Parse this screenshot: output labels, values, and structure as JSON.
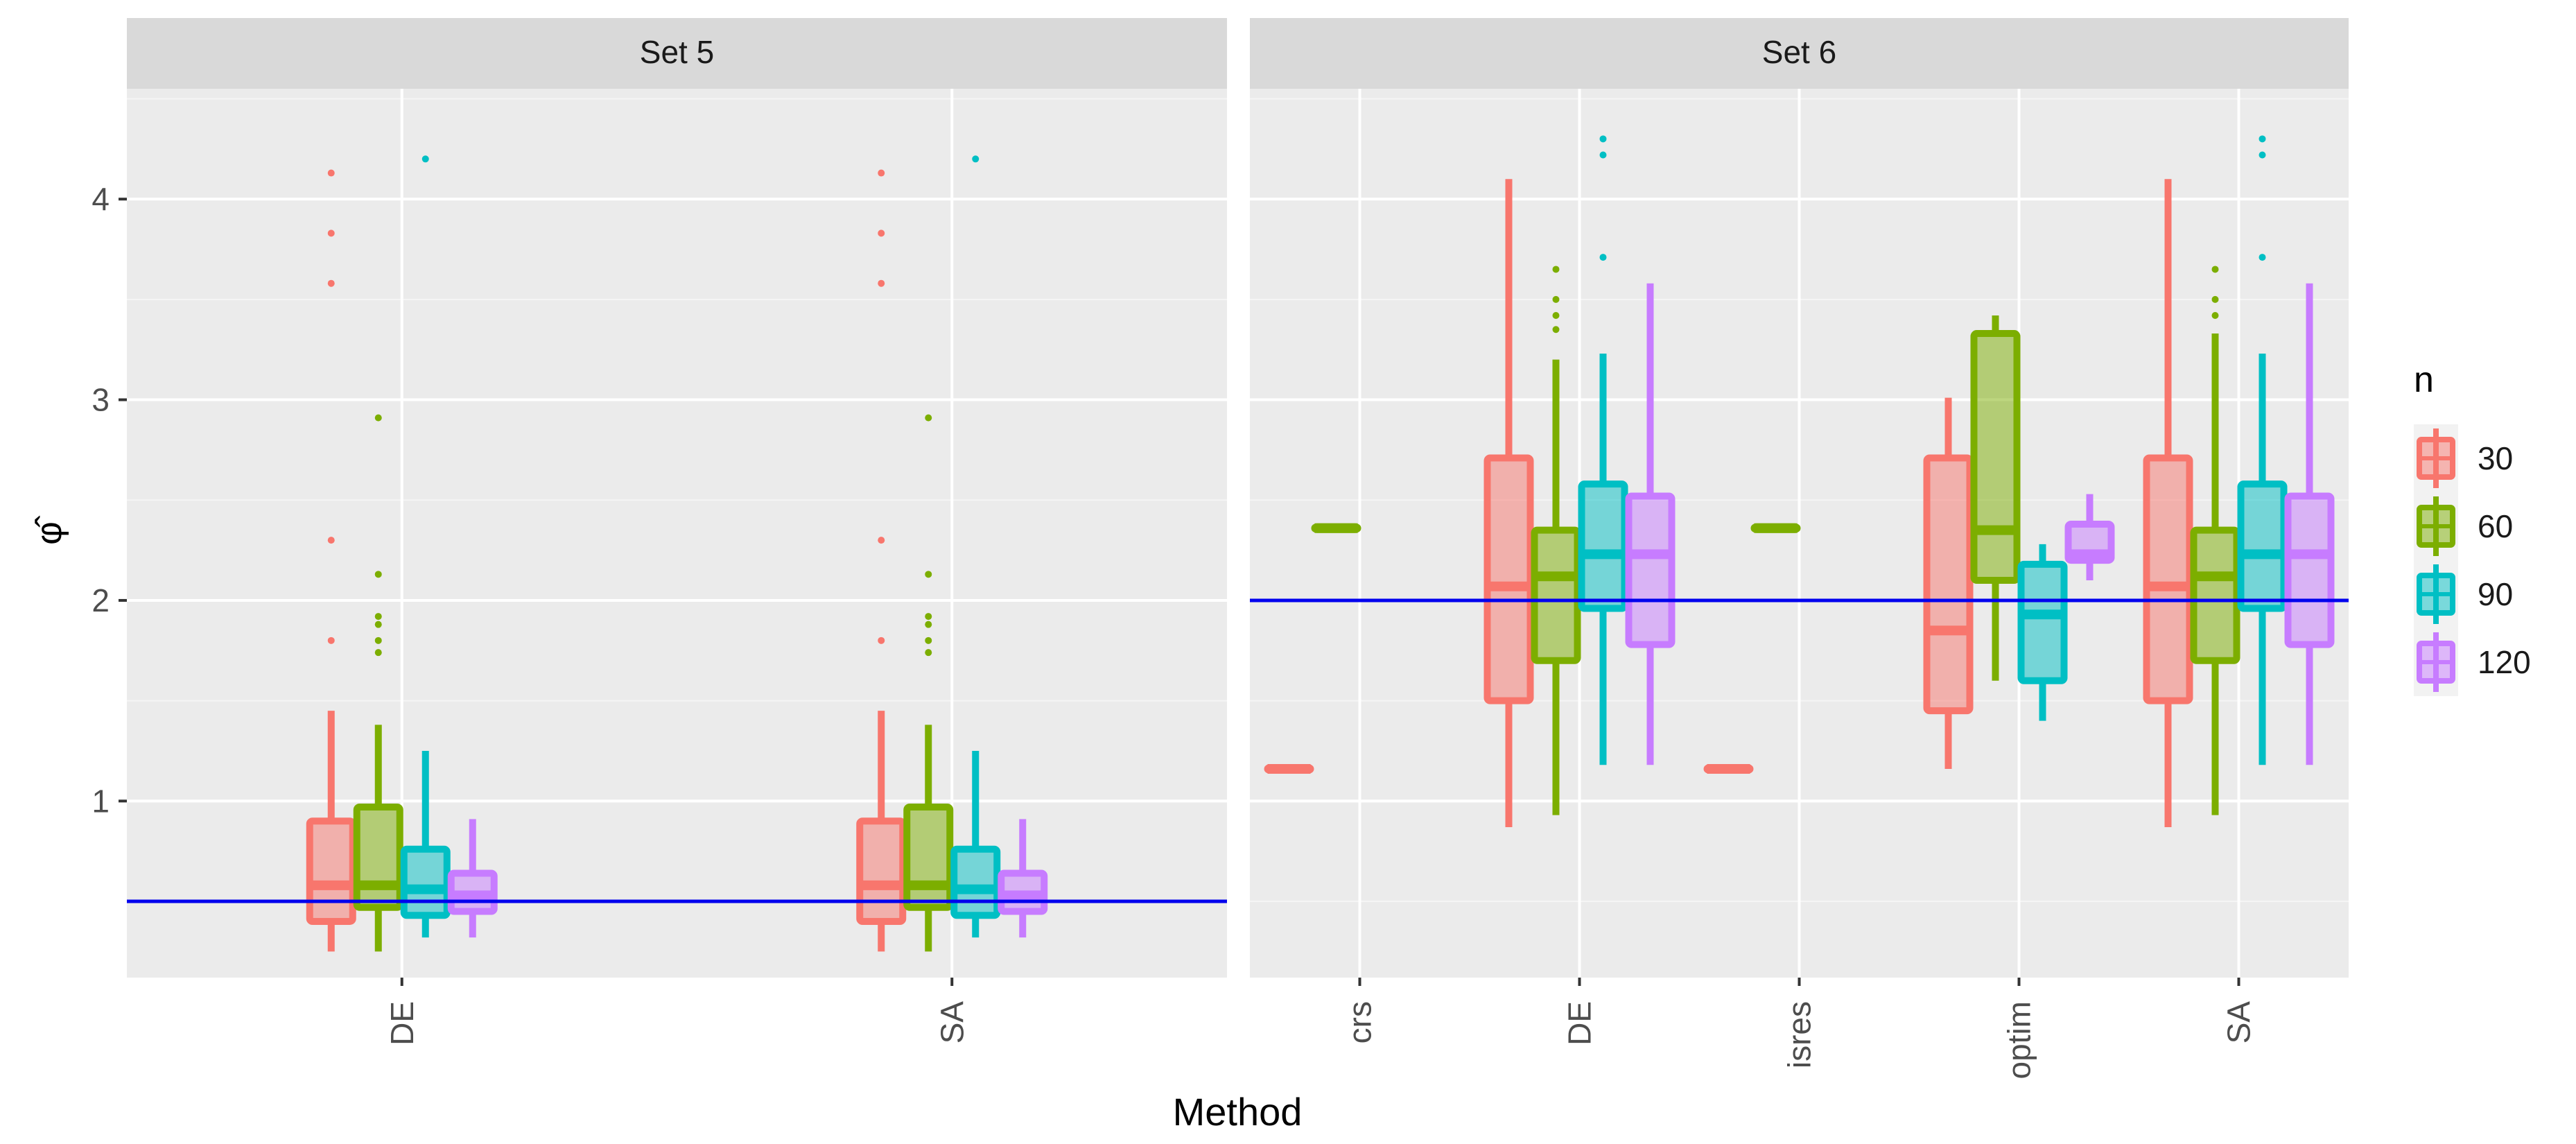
{
  "chart_data": {
    "type": "boxplot",
    "xlabel": "Method",
    "ylabel": "φ̂",
    "yticks": [
      1,
      2,
      3,
      4
    ],
    "ylim": [
      0.12,
      4.55
    ],
    "legend": {
      "title": "n",
      "position": "right",
      "entries": [
        {
          "label": "30",
          "color": "#F8766D"
        },
        {
          "label": "60",
          "color": "#7CAE00"
        },
        {
          "label": "90",
          "color": "#00BFC4"
        },
        {
          "label": "120",
          "color": "#C77CFF"
        }
      ]
    },
    "series_colors": [
      "#F8766D",
      "#7CAE00",
      "#00BFC4",
      "#C77CFF"
    ],
    "reference_line_color": "#0000EE",
    "panels": [
      {
        "strip": "Set 5",
        "reference_line": 0.5,
        "categories": [
          "DE",
          "SA"
        ],
        "groups": [
          {
            "category": "DE",
            "boxes": [
              {
                "n": "30",
                "whisker_low": 0.25,
                "q1": 0.4,
                "median": 0.58,
                "q3": 0.9,
                "whisker_high": 1.45,
                "outliers": [
                  1.8,
                  2.3,
                  3.58,
                  3.83,
                  4.13
                ]
              },
              {
                "n": "60",
                "whisker_low": 0.25,
                "q1": 0.47,
                "median": 0.58,
                "q3": 0.97,
                "whisker_high": 1.38,
                "outliers": [
                  1.74,
                  1.8,
                  1.88,
                  1.92,
                  2.13,
                  2.91
                ]
              },
              {
                "n": "90",
                "whisker_low": 0.32,
                "q1": 0.43,
                "median": 0.56,
                "q3": 0.76,
                "whisker_high": 1.25,
                "outliers": [
                  4.2
                ]
              },
              {
                "n": "120",
                "whisker_low": 0.32,
                "q1": 0.45,
                "median": 0.53,
                "q3": 0.64,
                "whisker_high": 0.91,
                "outliers": []
              }
            ]
          },
          {
            "category": "SA",
            "boxes": [
              {
                "n": "30",
                "whisker_low": 0.25,
                "q1": 0.4,
                "median": 0.58,
                "q3": 0.9,
                "whisker_high": 1.45,
                "outliers": [
                  1.8,
                  2.3,
                  3.58,
                  3.83,
                  4.13
                ]
              },
              {
                "n": "60",
                "whisker_low": 0.25,
                "q1": 0.47,
                "median": 0.58,
                "q3": 0.97,
                "whisker_high": 1.38,
                "outliers": [
                  1.74,
                  1.8,
                  1.88,
                  1.92,
                  2.13,
                  2.91
                ]
              },
              {
                "n": "90",
                "whisker_low": 0.32,
                "q1": 0.43,
                "median": 0.56,
                "q3": 0.76,
                "whisker_high": 1.25,
                "outliers": [
                  4.2
                ]
              },
              {
                "n": "120",
                "whisker_low": 0.32,
                "q1": 0.45,
                "median": 0.53,
                "q3": 0.64,
                "whisker_high": 0.91,
                "outliers": []
              }
            ]
          }
        ]
      },
      {
        "strip": "Set 6",
        "reference_line": 2.0,
        "categories": [
          "crs",
          "DE",
          "isres",
          "optim",
          "SA"
        ],
        "groups": [
          {
            "category": "crs",
            "boxes": [
              {
                "n": "30",
                "whisker_low": 1.16,
                "q1": 1.16,
                "median": 1.16,
                "q3": 1.16,
                "whisker_high": 1.16,
                "outliers": []
              },
              {
                "n": "60",
                "whisker_low": 2.36,
                "q1": 2.36,
                "median": 2.36,
                "q3": 2.36,
                "whisker_high": 2.36,
                "outliers": []
              }
            ]
          },
          {
            "category": "DE",
            "boxes": [
              {
                "n": "30",
                "whisker_low": 0.87,
                "q1": 1.5,
                "median": 2.07,
                "q3": 2.71,
                "whisker_high": 4.1,
                "outliers": []
              },
              {
                "n": "60",
                "whisker_low": 0.93,
                "q1": 1.7,
                "median": 2.12,
                "q3": 2.35,
                "whisker_high": 3.2,
                "outliers": [
                  3.35,
                  3.42,
                  3.5,
                  3.65
                ]
              },
              {
                "n": "90",
                "whisker_low": 1.18,
                "q1": 1.96,
                "median": 2.23,
                "q3": 2.58,
                "whisker_high": 3.23,
                "outliers": [
                  3.71,
                  4.22,
                  4.3
                ]
              },
              {
                "n": "120",
                "whisker_low": 1.18,
                "q1": 1.78,
                "median": 2.23,
                "q3": 2.52,
                "whisker_high": 3.58,
                "outliers": []
              }
            ]
          },
          {
            "category": "isres",
            "boxes": [
              {
                "n": "30",
                "whisker_low": 1.16,
                "q1": 1.16,
                "median": 1.16,
                "q3": 1.16,
                "whisker_high": 1.16,
                "outliers": []
              },
              {
                "n": "60",
                "whisker_low": 2.36,
                "q1": 2.36,
                "median": 2.36,
                "q3": 2.36,
                "whisker_high": 2.36,
                "outliers": []
              }
            ]
          },
          {
            "category": "optim",
            "boxes": [
              {
                "n": "30",
                "whisker_low": 1.16,
                "q1": 1.45,
                "median": 1.85,
                "q3": 2.71,
                "whisker_high": 3.01,
                "outliers": []
              },
              {
                "n": "60",
                "whisker_low": 1.6,
                "q1": 2.1,
                "median": 2.35,
                "q3": 3.33,
                "whisker_high": 3.42,
                "outliers": []
              },
              {
                "n": "90",
                "whisker_low": 1.4,
                "q1": 1.6,
                "median": 1.93,
                "q3": 2.18,
                "whisker_high": 2.28,
                "outliers": []
              },
              {
                "n": "120",
                "whisker_low": 2.1,
                "q1": 2.2,
                "median": 2.23,
                "q3": 2.38,
                "whisker_high": 2.53,
                "outliers": []
              }
            ]
          },
          {
            "category": "SA",
            "boxes": [
              {
                "n": "30",
                "whisker_low": 0.87,
                "q1": 1.5,
                "median": 2.07,
                "q3": 2.71,
                "whisker_high": 4.1,
                "outliers": []
              },
              {
                "n": "60",
                "whisker_low": 0.93,
                "q1": 1.7,
                "median": 2.12,
                "q3": 2.35,
                "whisker_high": 3.33,
                "outliers": [
                  3.42,
                  3.5,
                  3.65
                ]
              },
              {
                "n": "90",
                "whisker_low": 1.18,
                "q1": 1.96,
                "median": 2.23,
                "q3": 2.58,
                "whisker_high": 3.23,
                "outliers": [
                  3.71,
                  4.22,
                  4.3
                ]
              },
              {
                "n": "120",
                "whisker_low": 1.18,
                "q1": 1.78,
                "median": 2.23,
                "q3": 2.52,
                "whisker_high": 3.58,
                "outliers": []
              }
            ]
          }
        ]
      }
    ]
  }
}
